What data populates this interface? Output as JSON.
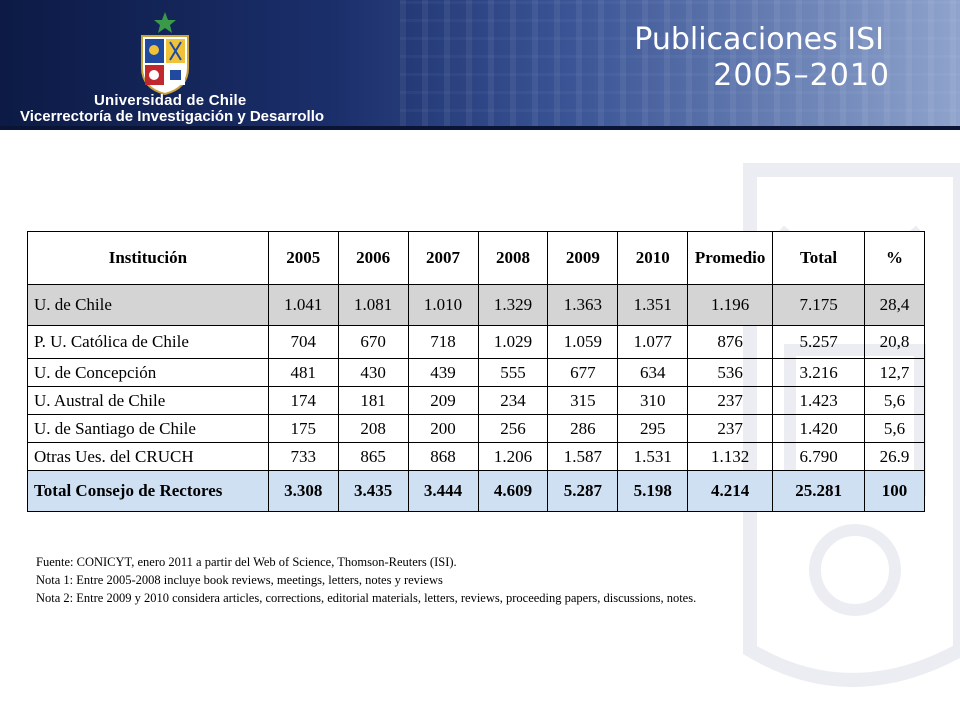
{
  "header": {
    "institution_line1": "Universidad de Chile",
    "institution_line2": "Vicerrectoría de Investigación y Desarrollo",
    "title_line1": "Publicaciones ISI",
    "title_line2": "2005–2010"
  },
  "table": {
    "headers": [
      "Institución",
      "2005",
      "2006",
      "2007",
      "2008",
      "2009",
      "2010",
      "Promedio",
      "Total",
      "%"
    ],
    "rows": [
      [
        "U. de Chile",
        "1.041",
        "1.081",
        "1.010",
        "1.329",
        "1.363",
        "1.351",
        "1.196",
        "7.175",
        "28,4"
      ],
      [
        "P. U. Católica de Chile",
        "704",
        "670",
        "718",
        "1.029",
        "1.059",
        "1.077",
        "876",
        "5.257",
        "20,8"
      ],
      [
        "U. de Concepción",
        "481",
        "430",
        "439",
        "555",
        "677",
        "634",
        "536",
        "3.216",
        "12,7"
      ],
      [
        "U. Austral de Chile",
        "174",
        "181",
        "209",
        "234",
        "315",
        "310",
        "237",
        "1.423",
        "5,6"
      ],
      [
        "U. de Santiago de Chile",
        "175",
        "208",
        "200",
        "256",
        "286",
        "295",
        "237",
        "1.420",
        "5,6"
      ],
      [
        "Otras Ues. del CRUCH",
        "733",
        "865",
        "868",
        "1.206",
        "1.587",
        "1.531",
        "1.132",
        "6.790",
        "26.9"
      ],
      [
        "Total Consejo de Rectores",
        "3.308",
        "3.435",
        "3.444",
        "4.609",
        "5.287",
        "5.198",
        "4.214",
        "25.281",
        "100"
      ]
    ]
  },
  "notes": {
    "source": "Fuente: CONICYT, enero 2011 a partir del Web of Science, Thomson-Reuters (ISI).",
    "note1": "Nota 1: Entre 2005-2008 incluye book reviews, meetings, letters, notes y reviews",
    "note2": "Nota 2: Entre 2009 y 2010 considera articles, corrections, editorial materials, letters, reviews, proceeding papers, discussions, notes."
  },
  "colors": {
    "banner_dark": "#0c1a45",
    "highlight_row": "#d4d4d4",
    "total_row": "#cfe0f3"
  }
}
